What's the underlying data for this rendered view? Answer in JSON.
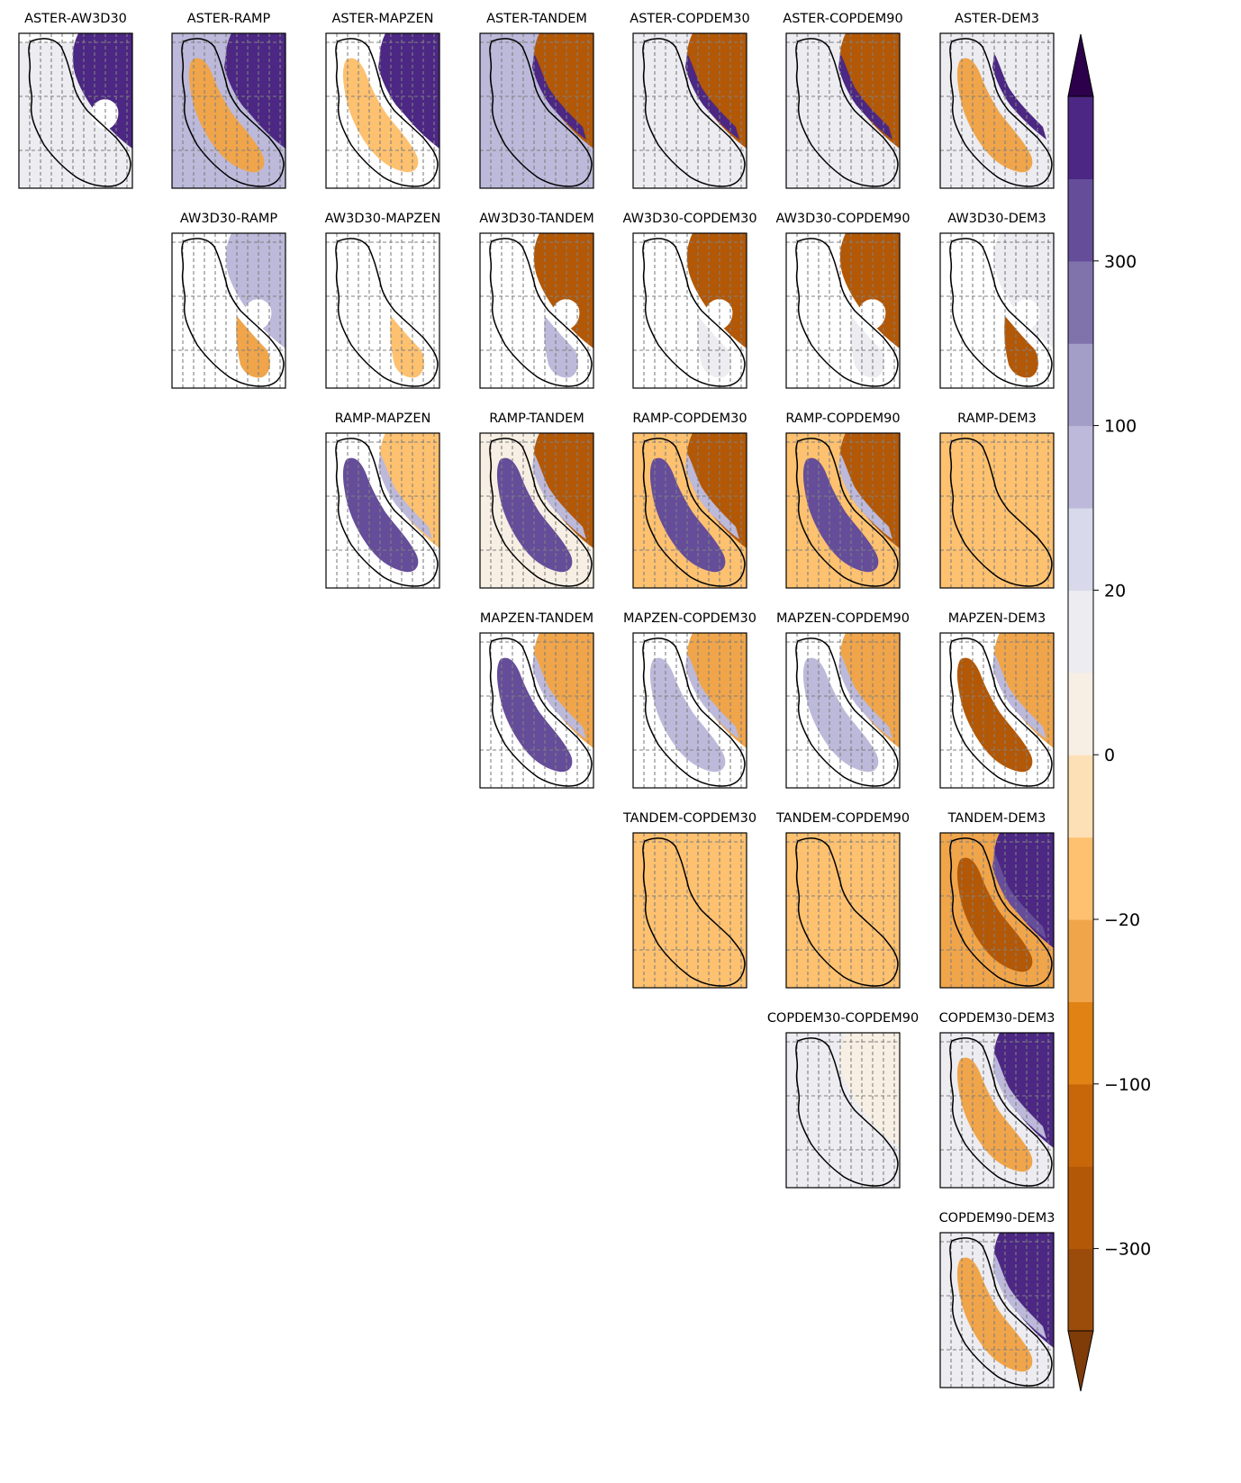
{
  "chart_data": {
    "type": "heatmap",
    "layout": "upper-triangular grid of pairwise DEM difference maps with one shared colorbar",
    "grid": "dashed gray",
    "dems": [
      "ASTER",
      "AW3D30",
      "RAMP",
      "MAPZEN",
      "TANDEM",
      "COPDEM30",
      "COPDEM90",
      "DEM3"
    ],
    "panels": [
      {
        "title": "ASTER-AW3D30",
        "row": 0,
        "col": 0,
        "coverage": "east",
        "main": "purple-dark",
        "west": "none",
        "east": "purple-dark",
        "strip": "light",
        "background": "light",
        "top_fill": false
      },
      {
        "title": "ASTER-RAMP",
        "row": 0,
        "col": 1,
        "coverage": "full",
        "main": "orange-mid",
        "west": "lavender",
        "east": "purple-dark",
        "strip": "purple-dark",
        "background": "lavender",
        "top_fill": true
      },
      {
        "title": "ASTER-MAPZEN",
        "row": 0,
        "col": 2,
        "coverage": "full",
        "main": "orange-light",
        "west": "none",
        "east": "purple-dark",
        "strip": "purple-dark",
        "background": "white",
        "top_fill": false
      },
      {
        "title": "ASTER-TANDEM",
        "row": 0,
        "col": 3,
        "coverage": "full",
        "main": "lavender",
        "west": "lavender",
        "east": "orange-dark",
        "strip": "purple-dark",
        "background": "lavender",
        "top_fill": true
      },
      {
        "title": "ASTER-COPDEM30",
        "row": 0,
        "col": 4,
        "coverage": "full",
        "main": "light",
        "west": "light",
        "east": "orange-dark",
        "strip": "purple-dark",
        "background": "light",
        "top_fill": false
      },
      {
        "title": "ASTER-COPDEM90",
        "row": 0,
        "col": 5,
        "coverage": "full",
        "main": "light",
        "west": "light",
        "east": "orange-dark",
        "strip": "purple-dark",
        "background": "light",
        "top_fill": false
      },
      {
        "title": "ASTER-DEM3",
        "row": 0,
        "col": 6,
        "coverage": "full",
        "main": "orange-mid",
        "west": "light",
        "east": "light",
        "strip": "purple-dark",
        "background": "light",
        "top_fill": false
      },
      {
        "title": "AW3D30-RAMP",
        "row": 1,
        "col": 1,
        "coverage": "east",
        "main": "none",
        "west": "none",
        "east": "lavender",
        "south": "orange-mid",
        "background": "white",
        "top_fill": false
      },
      {
        "title": "AW3D30-MAPZEN",
        "row": 1,
        "col": 2,
        "coverage": "east",
        "main": "none",
        "west": "none",
        "east": "none",
        "south": "orange-light",
        "background": "white",
        "top_fill": false
      },
      {
        "title": "AW3D30-TANDEM",
        "row": 1,
        "col": 3,
        "coverage": "east",
        "main": "none",
        "west": "none",
        "east": "orange-dark",
        "south": "lavender",
        "background": "white",
        "top_fill": false
      },
      {
        "title": "AW3D30-COPDEM30",
        "row": 1,
        "col": 4,
        "coverage": "east",
        "main": "none",
        "west": "none",
        "east": "orange-dark",
        "south": "light",
        "background": "white",
        "top_fill": false
      },
      {
        "title": "AW3D30-COPDEM90",
        "row": 1,
        "col": 5,
        "coverage": "east",
        "main": "none",
        "west": "none",
        "east": "orange-dark",
        "south": "light",
        "background": "white",
        "top_fill": false
      },
      {
        "title": "AW3D30-DEM3",
        "row": 1,
        "col": 6,
        "coverage": "east",
        "main": "none",
        "west": "none",
        "east": "light",
        "south": "orange-dark",
        "background": "white",
        "top_fill": false
      },
      {
        "title": "RAMP-MAPZEN",
        "row": 2,
        "col": 2,
        "coverage": "full",
        "main": "purple-mid",
        "west": "none",
        "east": "orange-light",
        "strip": "lavender",
        "background": "white",
        "top_fill": false
      },
      {
        "title": "RAMP-TANDEM",
        "row": 2,
        "col": 3,
        "coverage": "full",
        "main": "purple-mid",
        "west": "cream",
        "east": "orange-dark",
        "strip": "lavender",
        "background": "cream",
        "top_fill": true
      },
      {
        "title": "RAMP-COPDEM30",
        "row": 2,
        "col": 4,
        "coverage": "full",
        "main": "purple-mid",
        "west": "orange-light",
        "east": "orange-dark",
        "strip": "lavender",
        "background": "orange-light",
        "top_fill": true
      },
      {
        "title": "RAMP-COPDEM90",
        "row": 2,
        "col": 5,
        "coverage": "full",
        "main": "purple-mid",
        "west": "orange-light",
        "east": "orange-dark",
        "strip": "lavender",
        "background": "orange-light",
        "top_fill": true
      },
      {
        "title": "RAMP-DEM3",
        "row": 2,
        "col": 6,
        "coverage": "full",
        "main": "orange-light",
        "west": "orange-light",
        "east": "orange-light",
        "background": "orange-light",
        "top_fill": false
      },
      {
        "title": "MAPZEN-TANDEM",
        "row": 3,
        "col": 3,
        "coverage": "full",
        "main": "purple-mid",
        "west": "none",
        "east": "orange-mid",
        "strip": "lavender",
        "background": "white",
        "top_fill": false
      },
      {
        "title": "MAPZEN-COPDEM30",
        "row": 3,
        "col": 4,
        "coverage": "full",
        "main": "lavender",
        "west": "none",
        "east": "orange-mid",
        "strip": "lavender",
        "background": "white",
        "top_fill": false
      },
      {
        "title": "MAPZEN-COPDEM90",
        "row": 3,
        "col": 5,
        "coverage": "full",
        "main": "lavender",
        "west": "none",
        "east": "orange-mid",
        "strip": "lavender",
        "background": "white",
        "top_fill": false
      },
      {
        "title": "MAPZEN-DEM3",
        "row": 3,
        "col": 6,
        "coverage": "full",
        "main": "orange-dark",
        "west": "none",
        "east": "orange-mid",
        "strip": "lavender",
        "background": "white",
        "top_fill": false
      },
      {
        "title": "TANDEM-COPDEM30",
        "row": 4,
        "col": 4,
        "coverage": "full",
        "main": "orange-light",
        "west": "orange-light",
        "east": "orange-light",
        "background": "orange-light",
        "top_fill": true
      },
      {
        "title": "TANDEM-COPDEM90",
        "row": 4,
        "col": 5,
        "coverage": "full",
        "main": "orange-light",
        "west": "orange-light",
        "east": "orange-light",
        "background": "orange-light",
        "top_fill": true
      },
      {
        "title": "TANDEM-DEM3",
        "row": 4,
        "col": 6,
        "coverage": "full",
        "main": "orange-dark",
        "west": "orange-mid",
        "east": "purple-dark",
        "strip": "purple-mid",
        "background": "white",
        "top_fill": false
      },
      {
        "title": "COPDEM30-COPDEM90",
        "row": 5,
        "col": 5,
        "coverage": "full",
        "main": "light",
        "west": "light",
        "east": "cream",
        "background": "light",
        "top_fill": false
      },
      {
        "title": "COPDEM30-DEM3",
        "row": 5,
        "col": 6,
        "coverage": "full",
        "main": "orange-mid",
        "west": "light",
        "east": "purple-dark",
        "strip": "lavender",
        "background": "light",
        "top_fill": false
      },
      {
        "title": "COPDEM90-DEM3",
        "row": 6,
        "col": 6,
        "coverage": "full",
        "main": "orange-mid",
        "west": "light",
        "east": "purple-dark",
        "strip": "lavender",
        "background": "light",
        "top_fill": false
      }
    ],
    "colorbar": {
      "levels": [
        "<-300",
        "-300",
        "-200",
        "-100",
        "-50",
        "-20",
        "-10",
        "0",
        "10",
        "20",
        "50",
        "100",
        "200",
        "300",
        ">300"
      ],
      "colors": [
        "#7f3b08",
        "#9c4c0a",
        "#b35806",
        "#c8660a",
        "#e08214",
        "#f0a54a",
        "#fdc170",
        "#fee0b6",
        "#f7efe3",
        "#ececf1",
        "#d8daeb",
        "#bcb9da",
        "#a29ec8",
        "#8073ac",
        "#654d9a",
        "#4c2783",
        "#2d004b"
      ],
      "tick_labels": [
        "300",
        "100",
        "20",
        "0",
        "−20",
        "−100",
        "−300"
      ],
      "tick_values": [
        300,
        100,
        20,
        0,
        -20,
        -100,
        -300
      ],
      "extend": "both"
    },
    "palette": {
      "purple-dark": "#4c2783",
      "purple-mid": "#654d9a",
      "lavender": "#bcb9da",
      "light": "#ececf1",
      "cream": "#f7efe3",
      "orange-light": "#fdc170",
      "orange-mid": "#f0a54a",
      "orange-dark": "#b35806",
      "white": "#ffffff"
    }
  }
}
